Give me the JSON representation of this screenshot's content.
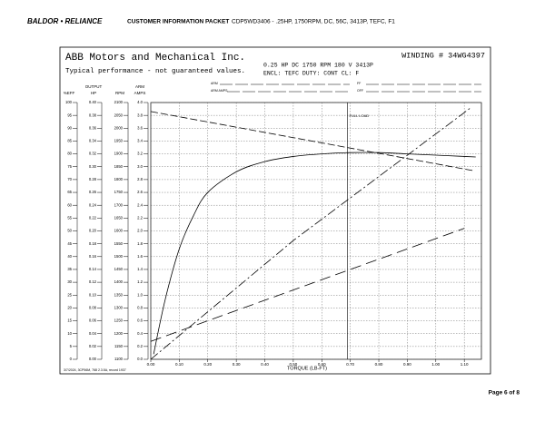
{
  "header": {
    "logo": "BALDOR • RELIANCE",
    "section": "CUSTOMER INFORMATION PACKET",
    "product": "CDP5WD3406 - .25HP, 1750RPM, DC, 56C, 3413P, TEFC, F1"
  },
  "document": {
    "company": "ABB Motors and Mechanical Inc.",
    "disclaimer": "Typical performance - not guaranteed values.",
    "winding": "WINDING # 34WG4397",
    "rating": "0.25 HP  DC  1750 RPM  180 V  3413P",
    "enclosure": "ENCL: TEFC  DUTY: CONT  CL: F",
    "field_labels": [
      "ARM",
      "ARM AMPS",
      "FF",
      "OFF"
    ],
    "footnote": "3/7/2024, 3CP56M, 768 2.3.5A, record 1937"
  },
  "chart_data": {
    "type": "line",
    "xlabel": "TORQUE (LB-FT)",
    "xlim": [
      0,
      1.16
    ],
    "xticks": [
      {
        "value": 0,
        "label": "0.00"
      },
      {
        "value": 0.1,
        "label": "0.10"
      },
      {
        "value": 0.2,
        "label": "0.20"
      },
      {
        "value": 0.3,
        "label": "0.30"
      },
      {
        "value": 0.4,
        "label": "0.40"
      },
      {
        "value": 0.5,
        "label": "0.50"
      },
      {
        "value": 0.6,
        "label": "0.60"
      },
      {
        "value": 0.7,
        "label": "0.70"
      },
      {
        "value": 0.8,
        "label": "0.80"
      },
      {
        "value": 0.9,
        "label": "0.90"
      },
      {
        "value": 1.0,
        "label": "1.00"
      },
      {
        "value": 1.1,
        "label": "1.10"
      }
    ],
    "grid": true,
    "color": "#000000",
    "axes": [
      {
        "title": [
          "%EFF"
        ],
        "ylim": [
          0,
          100
        ],
        "yticks": [
          100,
          95,
          90,
          85,
          80,
          75,
          70,
          65,
          60,
          55,
          50,
          45,
          40,
          35,
          30,
          25,
          20,
          15,
          10,
          5,
          0
        ],
        "series": {
          "x": [
            0.01,
            0.05,
            0.1,
            0.15,
            0.2,
            0.3,
            0.4,
            0.5,
            0.6,
            0.7,
            0.8,
            0.9,
            1.0,
            1.1,
            1.14
          ],
          "values": [
            2,
            23,
            43,
            56,
            65,
            73,
            77,
            79,
            80,
            80.5,
            80.5,
            80,
            79.5,
            79,
            78.8
          ]
        }
      },
      {
        "title": [
          "OUTPUT",
          "HP"
        ],
        "ylim": [
          0,
          0.4
        ],
        "yticks": [
          {
            "value": 0.4,
            "label": "0.40"
          },
          0.38,
          0.36,
          0.34,
          0.32,
          {
            "value": 0.3,
            "label": "0.30"
          },
          0.28,
          0.26,
          0.24,
          0.22,
          {
            "value": 0.2,
            "label": "0.20"
          },
          0.18,
          0.16,
          0.14,
          0.12,
          {
            "value": 0.1,
            "label": "0.10"
          },
          0.08,
          0.06,
          0.04,
          0.02,
          {
            "value": 0,
            "label": "0.00"
          }
        ],
        "series": {
          "x": [
            0,
            0.5,
            1.12
          ],
          "values": [
            0,
            0.185,
            0.391
          ]
        }
      },
      {
        "title": [
          "RPM"
        ],
        "ylim": [
          1100,
          2100
        ],
        "yticks": [
          2100,
          2050,
          2000,
          1950,
          1900,
          1850,
          1800,
          1750,
          1700,
          1650,
          1600,
          1550,
          1500,
          1450,
          1400,
          1350,
          1300,
          1250,
          1200,
          1150,
          1100
        ],
        "series": {
          "x": [
            0,
            1.13
          ],
          "values": [
            2065,
            1835
          ]
        }
      },
      {
        "title": [
          "ARM",
          "AMPS"
        ],
        "ylim": [
          0,
          4
        ],
        "yticks": [
          {
            "value": 4,
            "label": "4.0"
          },
          3.8,
          3.6,
          3.4,
          3.2,
          {
            "value": 3,
            "label": "3.0"
          },
          2.8,
          2.6,
          2.4,
          2.2,
          {
            "value": 2,
            "label": "2.0"
          },
          1.8,
          1.6,
          1.4,
          1.2,
          {
            "value": 1,
            "label": "1.0"
          },
          0.8,
          0.6,
          0.4,
          0.2,
          {
            "value": 0,
            "label": "0.0"
          }
        ],
        "series": {
          "x": [
            0,
            1.1
          ],
          "values": [
            0.28,
            2.04
          ]
        }
      }
    ],
    "annotations": [
      {
        "text": "FULL LOAD",
        "x": 0.69
      }
    ]
  },
  "page": "Page 6 of 8"
}
